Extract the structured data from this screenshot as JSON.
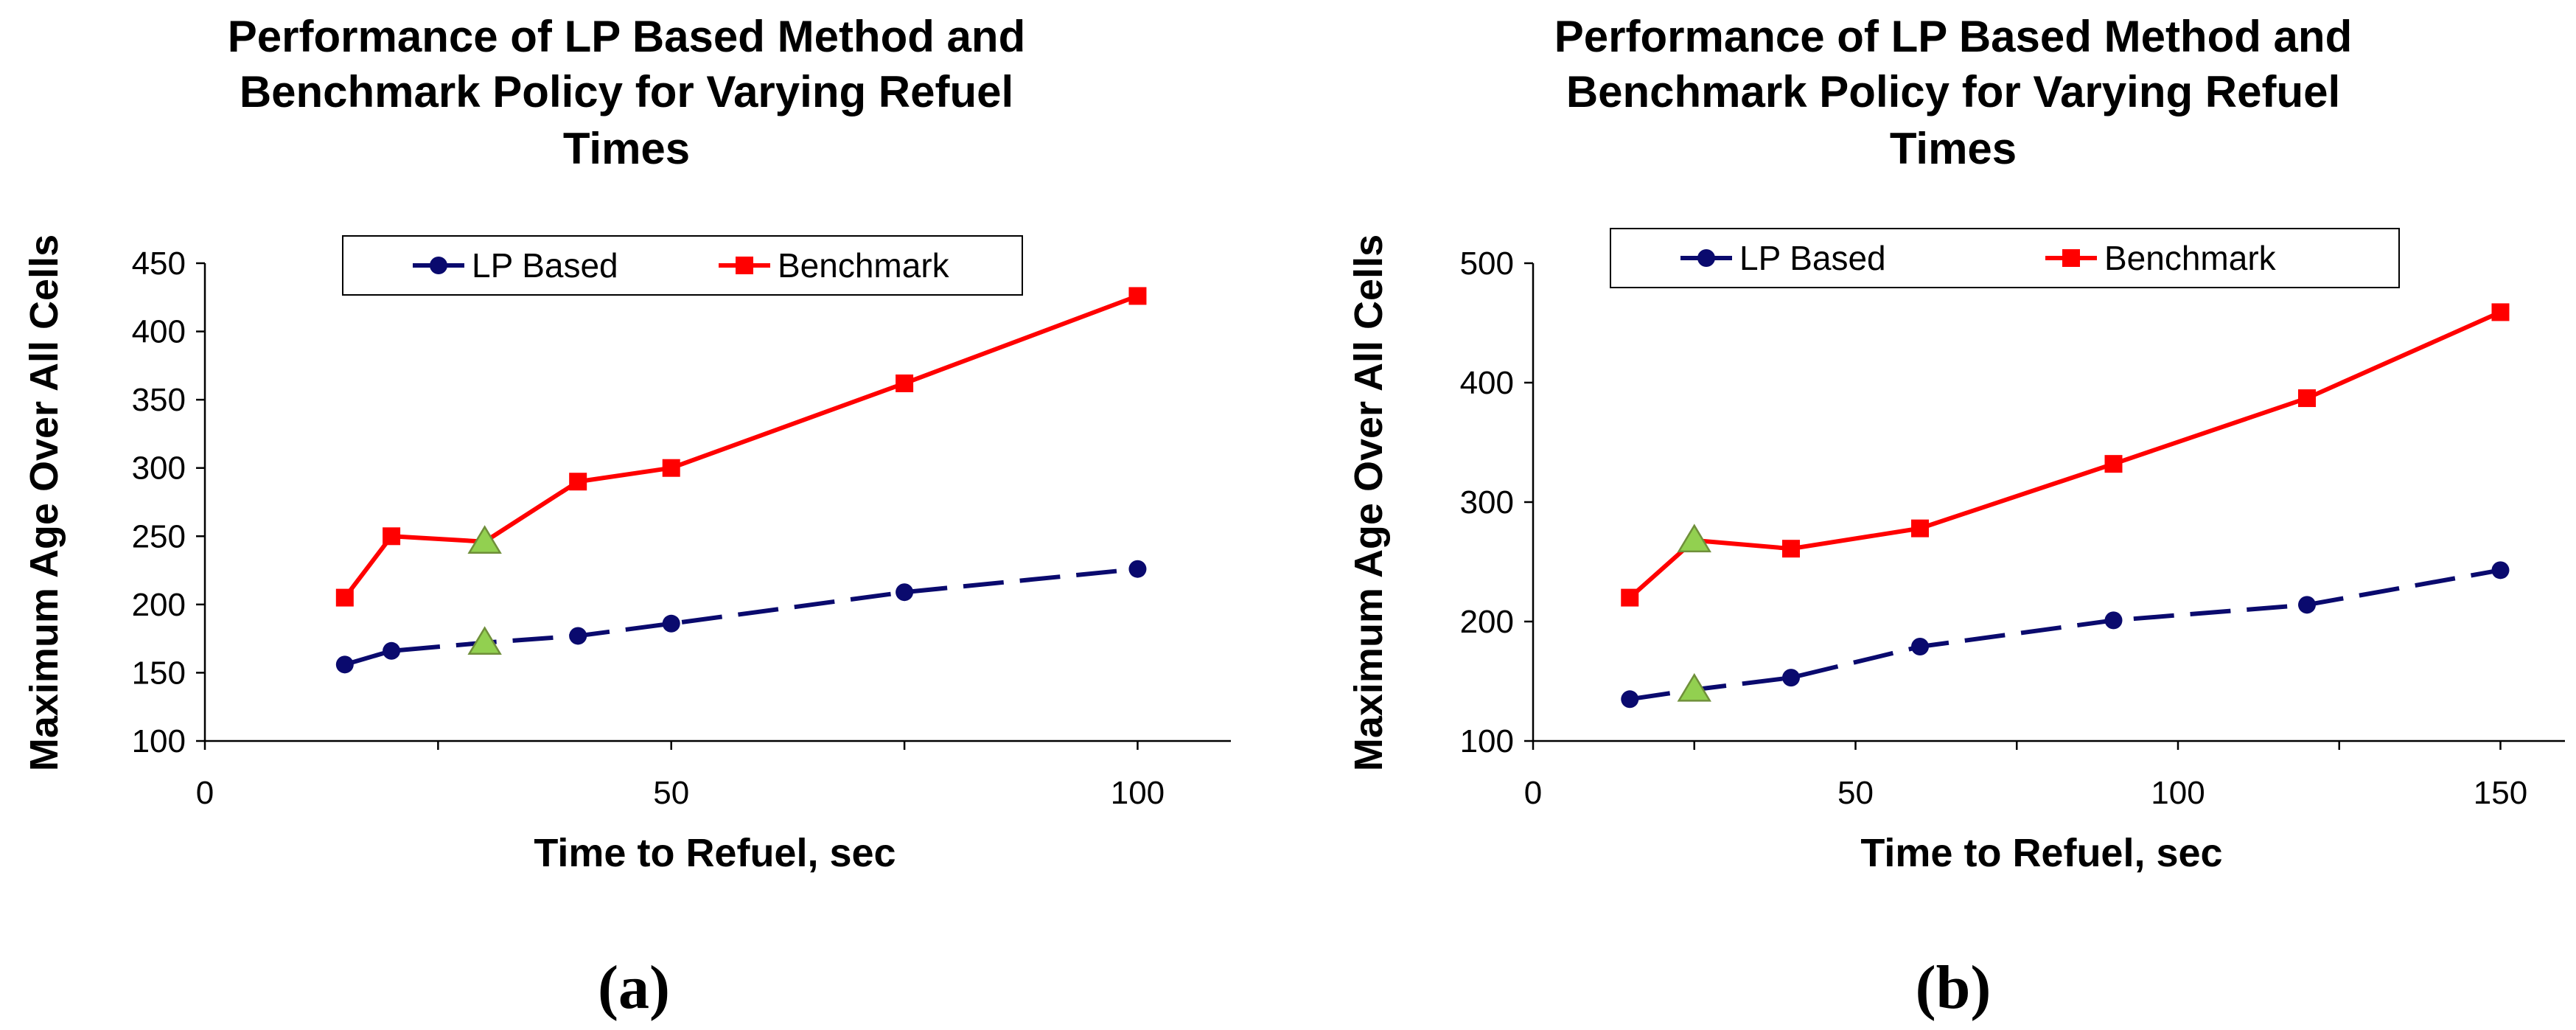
{
  "chart_data": [
    {
      "type": "line",
      "title": [
        "Performance of LP Based Method and",
        "Benchmark Policy for Varying Refuel",
        "Times"
      ],
      "xlabel": "Time to Refuel, sec",
      "ylabel": "Maximum Age Over All Cells",
      "caption": "(a)",
      "xlim": [
        0,
        110
      ],
      "ylim": [
        100,
        450
      ],
      "xticks": [
        0,
        50,
        100
      ],
      "yticks": [
        100,
        150,
        200,
        250,
        300,
        350,
        400,
        450
      ],
      "legend": "top-center",
      "grid": false,
      "series": [
        {
          "name": "LP Based",
          "color": "#0a0a6e",
          "marker": "circle",
          "dash": "dashed",
          "x": [
            15,
            20,
            30,
            40,
            50,
            75,
            100
          ],
          "y": [
            156,
            166,
            172,
            177,
            186,
            209,
            226
          ],
          "highlight_index": 2
        },
        {
          "name": "Benchmark",
          "color": "#ff0000",
          "marker": "square",
          "dash": "solid",
          "x": [
            15,
            20,
            30,
            40,
            50,
            75,
            100
          ],
          "y": [
            205,
            250,
            246,
            290,
            300,
            362,
            426
          ],
          "highlight_index": 2
        }
      ],
      "highlight_color": "#92d050"
    },
    {
      "type": "line",
      "title": [
        "Performance of LP Based Method and",
        "Benchmark Policy for Varying Refuel",
        "Times"
      ],
      "xlabel": "Time to Refuel, sec",
      "ylabel": "Maximum Age Over All Cells",
      "caption": "(b)",
      "xlim": [
        0,
        160
      ],
      "ylim": [
        100,
        500
      ],
      "xticks": [
        0,
        50,
        100,
        150
      ],
      "yticks": [
        100,
        200,
        300,
        400,
        500
      ],
      "legend": "top-center",
      "grid": false,
      "series": [
        {
          "name": "LP Based",
          "color": "#0a0a6e",
          "marker": "circle",
          "dash": "dashed",
          "x": [
            15,
            25,
            40,
            60,
            90,
            120,
            150
          ],
          "y": [
            135,
            143,
            153,
            179,
            201,
            214,
            243
          ],
          "highlight_index": 1
        },
        {
          "name": "Benchmark",
          "color": "#ff0000",
          "marker": "square",
          "dash": "solid",
          "x": [
            15,
            25,
            40,
            60,
            90,
            120,
            150
          ],
          "y": [
            220,
            268,
            261,
            278,
            332,
            387,
            459
          ],
          "highlight_index": 1
        }
      ],
      "highlight_color": "#92d050"
    }
  ]
}
